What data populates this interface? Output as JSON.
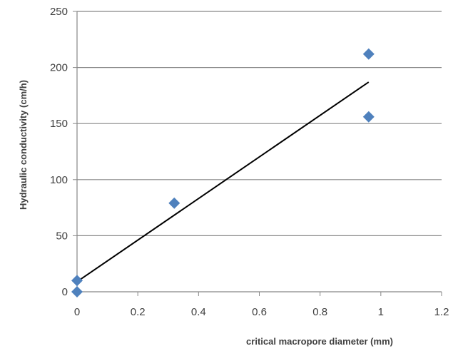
{
  "chart_data": {
    "type": "scatter",
    "title": "",
    "xlabel": "critical macropore diameter (mm)",
    "ylabel": "Hydraulic conductivity  (cm/h)",
    "xlim": [
      0,
      1.2
    ],
    "ylim": [
      0,
      250
    ],
    "x_ticks": [
      "0",
      "0.2",
      "0.4",
      "0.6",
      "0.8",
      "1",
      "1.2"
    ],
    "y_ticks": [
      "0",
      "50",
      "100",
      "150",
      "200",
      "250"
    ],
    "grid": "horizontal",
    "legend": "none",
    "series": [
      {
        "marker": "diamond",
        "color": "#4F81BD",
        "points": [
          {
            "x": 0,
            "y": 0
          },
          {
            "x": 0,
            "y": 10
          },
          {
            "x": 0.32,
            "y": 79
          },
          {
            "x": 0.96,
            "y": 156
          },
          {
            "x": 0.96,
            "y": 212
          }
        ]
      }
    ],
    "trendline": {
      "type": "linear",
      "color": "#000000",
      "from": {
        "x": 0,
        "y": 9
      },
      "to": {
        "x": 0.96,
        "y": 187
      }
    }
  }
}
